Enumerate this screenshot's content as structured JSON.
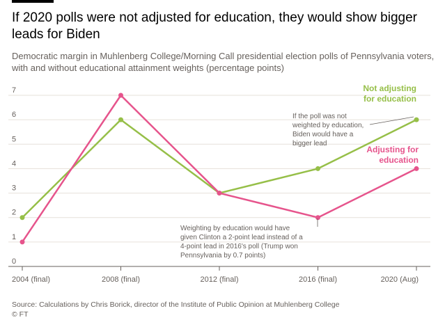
{
  "header": {
    "title": "If 2020 polls were not adjusted for education, they would show bigger leads for Biden",
    "subtitle": "Democratic margin in Muhlenberg College/Morning Call presidential election polls of Pennsylvania voters, with and without educational attainment weights (percentage points)"
  },
  "footer": {
    "source": "Source: Calculations by Chris Borick, director of the Institute of Public Opinion at Muhlenberg College",
    "credit": "© FT"
  },
  "colors": {
    "not_adjusting": "#96bf48",
    "adjusting": "#e6548c",
    "grid": "#e6e0da",
    "axis": "#66605c",
    "annotation_line": "#66605c"
  },
  "chart_data": {
    "type": "line",
    "categories": [
      "2004 (final)",
      "2008 (final)",
      "2012 (final)",
      "2016 (final)",
      "2020 (Aug)"
    ],
    "ylim": [
      0,
      7
    ],
    "yticks": [
      0,
      1,
      2,
      3,
      4,
      5,
      6,
      7
    ],
    "grid": true,
    "title": "",
    "xlabel": "",
    "ylabel": "",
    "series": [
      {
        "name": "Not adjusting for education",
        "label_lines": [
          "Not adjusting",
          "for education"
        ],
        "color_key": "not_adjusting",
        "values": [
          2,
          6,
          3,
          4,
          6
        ]
      },
      {
        "name": "Adjusting for education",
        "label_lines": [
          "Adjusting for",
          "education"
        ],
        "color_key": "adjusting",
        "values": [
          1,
          7,
          3,
          2,
          4
        ]
      }
    ],
    "annotations": [
      {
        "id": "biden-lead",
        "lines": [
          "If the poll was not",
          "weighted by education,",
          "Biden would have a",
          "bigger lead"
        ]
      },
      {
        "id": "clinton-lead",
        "lines": [
          "Weighting by education would have",
          "given Clinton a 2-point lead instead of a",
          "4-point lead in 2016's poll (Trump won",
          "Pennsylvania by 0.7 points)"
        ]
      }
    ]
  }
}
